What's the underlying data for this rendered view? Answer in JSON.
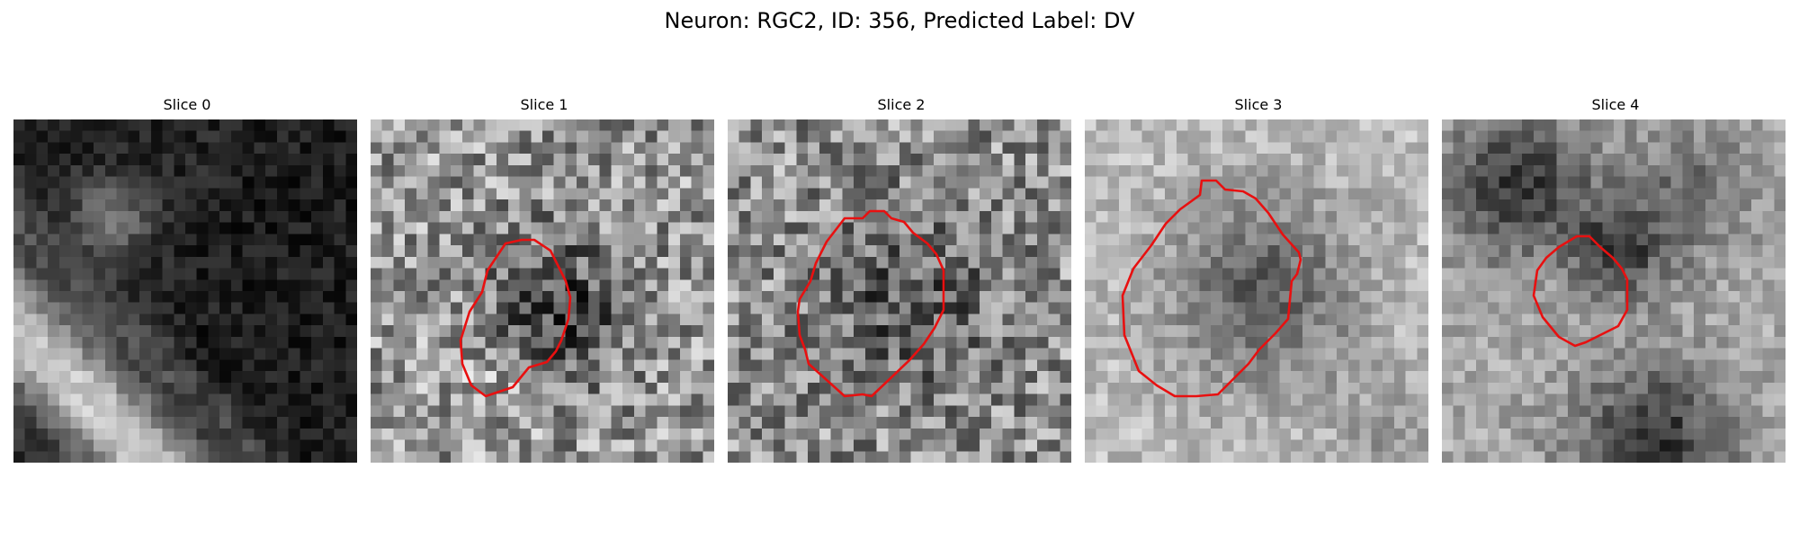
{
  "figure": {
    "title": "Neuron: RGC2, ID: 356, Predicted Label: DV"
  },
  "colors": {
    "contour": "#e81010"
  },
  "panels": [
    {
      "title": "Slice 0",
      "has_contour": false
    },
    {
      "title": "Slice 1",
      "has_contour": true
    },
    {
      "title": "Slice 2",
      "has_contour": true
    },
    {
      "title": "Slice 3",
      "has_contour": true
    },
    {
      "title": "Slice 4",
      "has_contour": true
    }
  ]
}
